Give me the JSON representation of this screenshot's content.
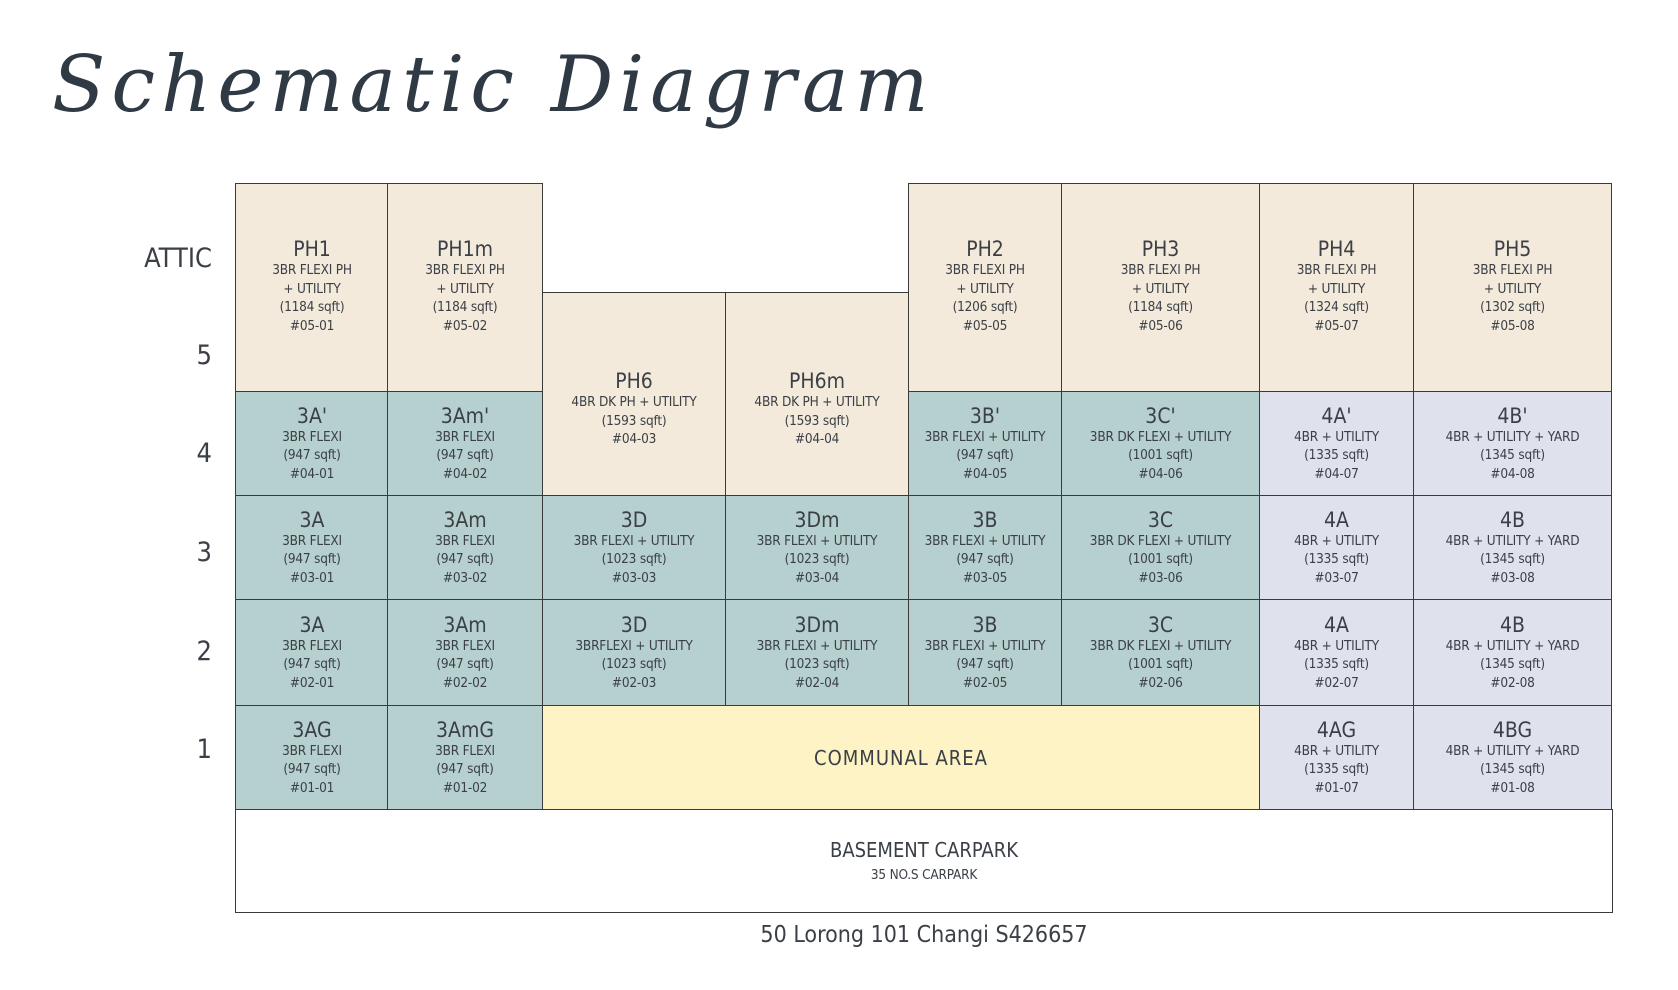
{
  "title": "Schematic Diagram",
  "floors": [
    "ATTIC",
    "5",
    "4",
    "3",
    "2",
    "1"
  ],
  "colors": {
    "penthouse": "#f3eadb",
    "three_bedroom": "#b5d0ce",
    "four_bedroom": "#dfe2ec",
    "communal": "#fdf3c4"
  },
  "units": [
    {
      "code": "PH1",
      "lines": [
        "3BR FLEXI PH",
        "+ UTILITY",
        "(1184 sqft)",
        "#05-01"
      ],
      "type": "penthouse"
    },
    {
      "code": "PH1m",
      "lines": [
        "3BR FLEXI PH",
        "+ UTILITY",
        "(1184 sqft)",
        "#05-02"
      ],
      "type": "penthouse"
    },
    {
      "code": "PH6",
      "lines": [
        "4BR DK PH + UTILITY",
        "(1593 sqft)",
        "#04-03"
      ],
      "type": "penthouse"
    },
    {
      "code": "PH6m",
      "lines": [
        "4BR DK PH + UTILITY",
        "(1593 sqft)",
        "#04-04"
      ],
      "type": "penthouse"
    },
    {
      "code": "PH2",
      "lines": [
        "3BR FLEXI PH",
        "+ UTILITY",
        "(1206 sqft)",
        "#05-05"
      ],
      "type": "penthouse"
    },
    {
      "code": "PH3",
      "lines": [
        "3BR FLEXI PH",
        "+ UTILITY",
        "(1184 sqft)",
        "#05-06"
      ],
      "type": "penthouse"
    },
    {
      "code": "PH4",
      "lines": [
        "3BR FLEXI PH",
        "+ UTILITY",
        "(1324 sqft)",
        "#05-07"
      ],
      "type": "penthouse"
    },
    {
      "code": "PH5",
      "lines": [
        "3BR FLEXI PH",
        "+ UTILITY",
        "(1302 sqft)",
        "#05-08"
      ],
      "type": "penthouse"
    },
    {
      "code": "3A'",
      "lines": [
        "3BR FLEXI",
        "(947 sqft)",
        "#04-01"
      ],
      "type": "three_bedroom"
    },
    {
      "code": "3Am'",
      "lines": [
        "3BR FLEXI",
        "(947 sqft)",
        "#04-02"
      ],
      "type": "three_bedroom"
    },
    {
      "code": "3B'",
      "lines": [
        "3BR FLEXI + UTILITY",
        "(947 sqft)",
        "#04-05"
      ],
      "type": "three_bedroom"
    },
    {
      "code": "3C'",
      "lines": [
        "3BR DK FLEXI + UTILITY",
        "(1001 sqft)",
        "#04-06"
      ],
      "type": "three_bedroom"
    },
    {
      "code": "4A'",
      "lines": [
        "4BR + UTILITY",
        "(1335 sqft)",
        "#04-07"
      ],
      "type": "four_bedroom"
    },
    {
      "code": "4B'",
      "lines": [
        "4BR + UTILITY + YARD",
        "(1345 sqft)",
        "#04-08"
      ],
      "type": "four_bedroom"
    },
    {
      "code": "3A",
      "lines": [
        "3BR FLEXI",
        "(947 sqft)",
        "#03-01"
      ],
      "type": "three_bedroom"
    },
    {
      "code": "3Am",
      "lines": [
        "3BR FLEXI",
        "(947 sqft)",
        "#03-02"
      ],
      "type": "three_bedroom"
    },
    {
      "code": "3D",
      "lines": [
        "3BR FLEXI + UTILITY",
        "(1023 sqft)",
        "#03-03"
      ],
      "type": "three_bedroom"
    },
    {
      "code": "3Dm",
      "lines": [
        "3BR FLEXI + UTILITY",
        "(1023 sqft)",
        "#03-04"
      ],
      "type": "three_bedroom"
    },
    {
      "code": "3B",
      "lines": [
        "3BR FLEXI + UTILITY",
        "(947 sqft)",
        "#03-05"
      ],
      "type": "three_bedroom"
    },
    {
      "code": "3C",
      "lines": [
        "3BR DK FLEXI + UTILITY",
        "(1001 sqft)",
        "#03-06"
      ],
      "type": "three_bedroom"
    },
    {
      "code": "4A",
      "lines": [
        "4BR + UTILITY",
        "(1335 sqft)",
        "#03-07"
      ],
      "type": "four_bedroom"
    },
    {
      "code": "4B",
      "lines": [
        "4BR + UTILITY + YARD",
        "(1345 sqft)",
        "#03-08"
      ],
      "type": "four_bedroom"
    },
    {
      "code": "3A",
      "lines": [
        "3BR FLEXI",
        "(947 sqft)",
        "#02-01"
      ],
      "type": "three_bedroom"
    },
    {
      "code": "3Am",
      "lines": [
        "3BR FLEXI",
        "(947 sqft)",
        "#02-02"
      ],
      "type": "three_bedroom"
    },
    {
      "code": "3D",
      "lines": [
        "3BRFLEXI + UTILITY",
        "(1023 sqft)",
        "#02-03"
      ],
      "type": "three_bedroom"
    },
    {
      "code": "3Dm",
      "lines": [
        "3BR FLEXI + UTILITY",
        "(1023 sqft)",
        "#02-04"
      ],
      "type": "three_bedroom"
    },
    {
      "code": "3B",
      "lines": [
        "3BR FLEXI + UTILITY",
        "(947 sqft)",
        "#02-05"
      ],
      "type": "three_bedroom"
    },
    {
      "code": "3C",
      "lines": [
        "3BR DK FLEXI + UTILITY",
        "(1001 sqft)",
        "#02-06"
      ],
      "type": "three_bedroom"
    },
    {
      "code": "4A",
      "lines": [
        "4BR + UTILITY",
        "(1335 sqft)",
        "#02-07"
      ],
      "type": "four_bedroom"
    },
    {
      "code": "4B",
      "lines": [
        "4BR + UTILITY + YARD",
        "(1345 sqft)",
        "#02-08"
      ],
      "type": "four_bedroom"
    },
    {
      "code": "3AG",
      "lines": [
        "3BR FLEXI",
        "(947 sqft)",
        "#01-01"
      ],
      "type": "three_bedroom"
    },
    {
      "code": "3AmG",
      "lines": [
        "3BR FLEXI",
        "(947 sqft)",
        "#01-02"
      ],
      "type": "three_bedroom"
    },
    {
      "code": "COMMUNAL AREA",
      "lines": [],
      "type": "communal"
    },
    {
      "code": "4AG",
      "lines": [
        "4BR + UTILITY",
        "(1335 sqft)",
        "#01-07"
      ],
      "type": "four_bedroom"
    },
    {
      "code": "4BG",
      "lines": [
        "4BR + UTILITY + YARD",
        "(1345 sqft)",
        "#01-08"
      ],
      "type": "four_bedroom"
    },
    {
      "code": "BASEMENT CARPARK",
      "lines": [
        "35 NO.S CARPARK"
      ],
      "type": "basement"
    }
  ],
  "address": "50 Lorong 101 Changi S426657"
}
